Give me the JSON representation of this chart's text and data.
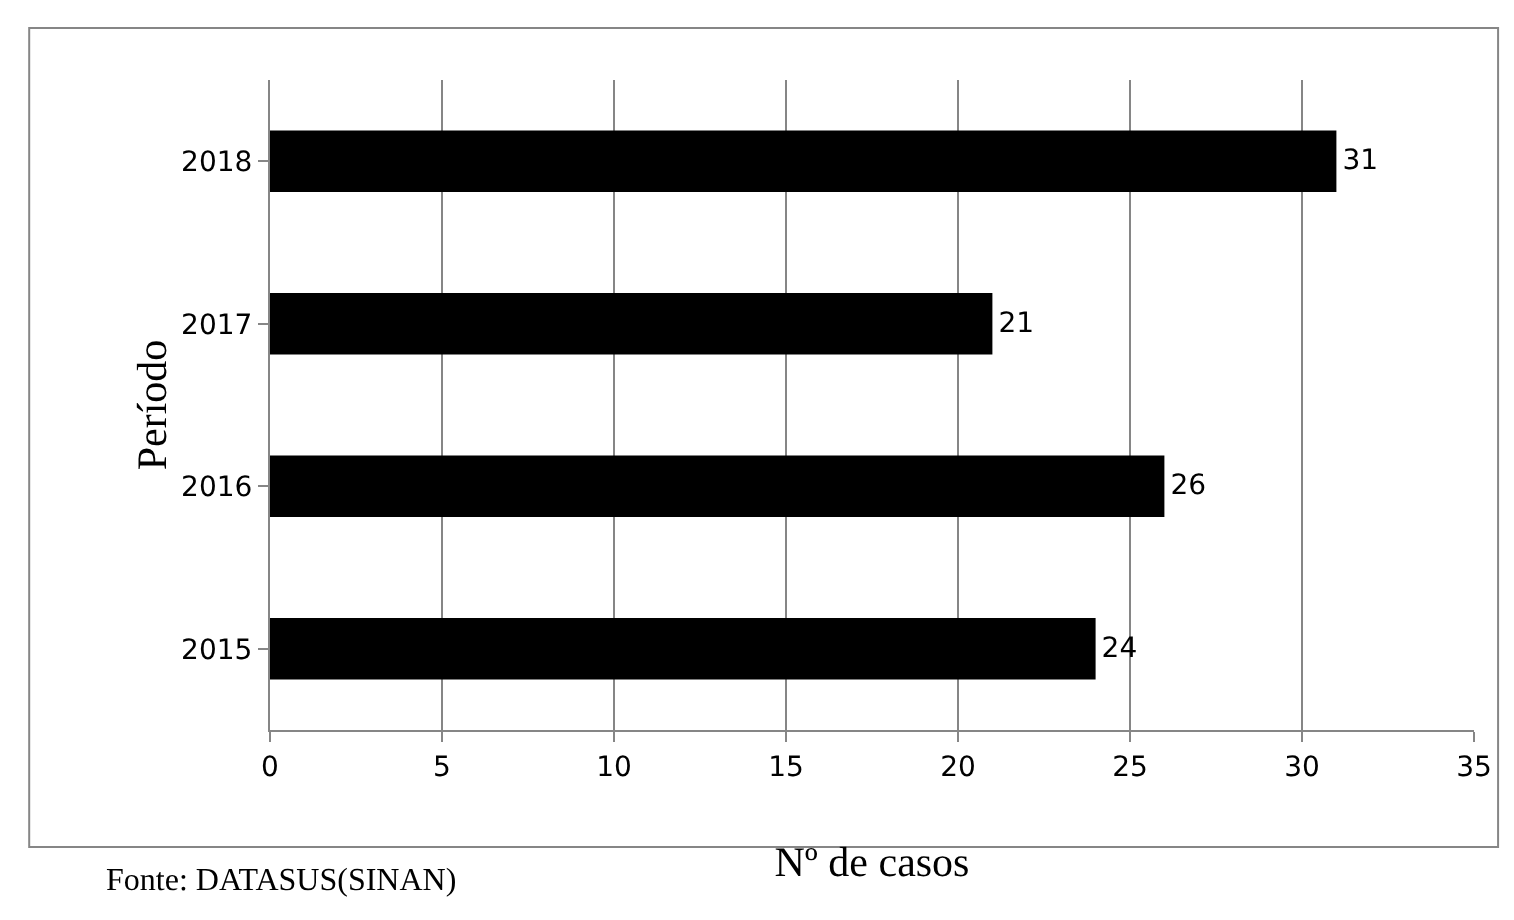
{
  "chart_data": {
    "type": "bar",
    "orientation": "horizontal",
    "xlabel": "Nº de casos",
    "ylabel": "Período",
    "categories": [
      "2018",
      "2017",
      "2016",
      "2015"
    ],
    "values": [
      31,
      21,
      26,
      24
    ],
    "color": "#000000",
    "xlim": [
      0,
      35
    ],
    "xticks": [
      0,
      5,
      10,
      15,
      20,
      25,
      30,
      35
    ],
    "grid": "x",
    "data_labels": true,
    "annotations": [
      "Fonte: DATASUS(SINAN)"
    ]
  }
}
